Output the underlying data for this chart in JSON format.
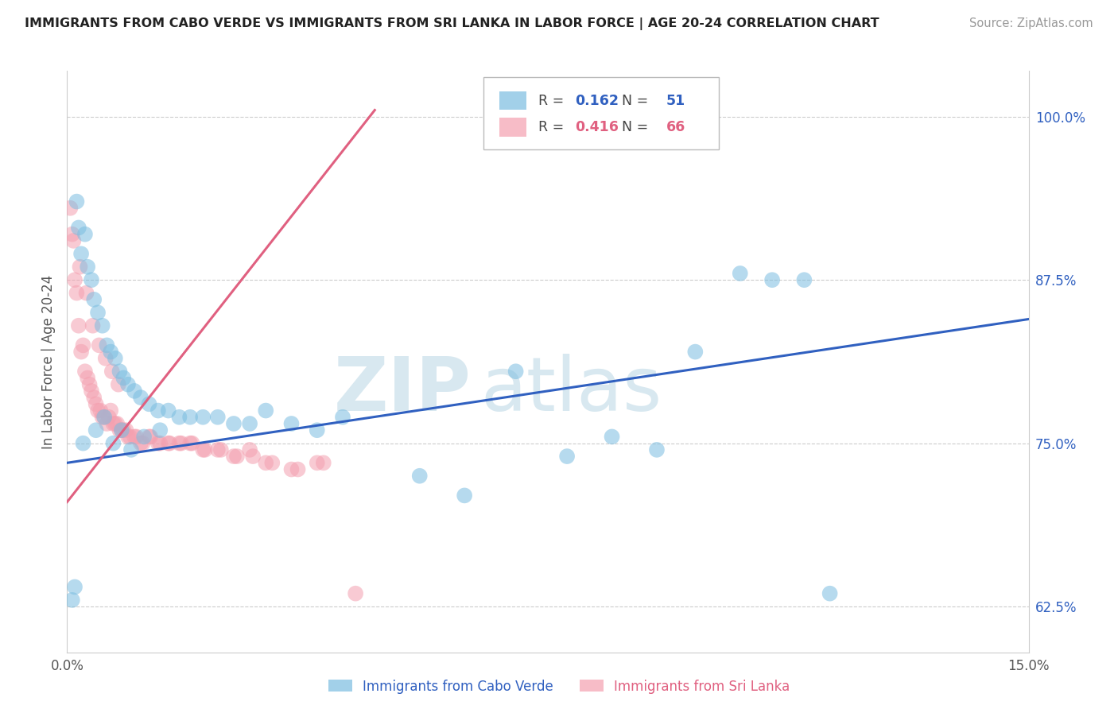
{
  "title": "IMMIGRANTS FROM CABO VERDE VS IMMIGRANTS FROM SRI LANKA IN LABOR FORCE | AGE 20-24 CORRELATION CHART",
  "source": "Source: ZipAtlas.com",
  "ylabel": "In Labor Force | Age 20-24",
  "xlim": [
    0.0,
    15.0
  ],
  "ylim": [
    59.0,
    103.5
  ],
  "yticks": [
    62.5,
    75.0,
    87.5,
    100.0
  ],
  "ytick_labels": [
    "62.5%",
    "75.0%",
    "87.5%",
    "100.0%"
  ],
  "cabo_verde_color": "#7bbde0",
  "sri_lanka_color": "#f4a0b0",
  "cabo_verde_R": 0.162,
  "cabo_verde_N": 51,
  "sri_lanka_R": 0.416,
  "sri_lanka_N": 66,
  "cabo_verde_trend_color": "#3060c0",
  "sri_lanka_trend_color": "#e06080",
  "legend_cabo_verde": "Immigrants from Cabo Verde",
  "legend_sri_lanka": "Immigrants from Sri Lanka",
  "cabo_verde_x": [
    0.15,
    0.18,
    0.22,
    0.28,
    0.32,
    0.38,
    0.42,
    0.48,
    0.55,
    0.62,
    0.68,
    0.75,
    0.82,
    0.88,
    0.95,
    1.05,
    1.15,
    1.28,
    1.42,
    1.58,
    1.75,
    1.92,
    2.12,
    2.35,
    2.6,
    2.85,
    3.1,
    3.5,
    3.9,
    4.3,
    5.5,
    6.2,
    7.0,
    7.8,
    8.5,
    9.2,
    9.8,
    10.5,
    11.0,
    11.5,
    11.9,
    0.08,
    0.12,
    0.25,
    0.45,
    0.58,
    0.72,
    0.85,
    1.0,
    1.2,
    1.45
  ],
  "cabo_verde_y": [
    93.5,
    91.5,
    89.5,
    91.0,
    88.5,
    87.5,
    86.0,
    85.0,
    84.0,
    82.5,
    82.0,
    81.5,
    80.5,
    80.0,
    79.5,
    79.0,
    78.5,
    78.0,
    77.5,
    77.5,
    77.0,
    77.0,
    77.0,
    77.0,
    76.5,
    76.5,
    77.5,
    76.5,
    76.0,
    77.0,
    72.5,
    71.0,
    80.5,
    74.0,
    75.5,
    74.5,
    82.0,
    88.0,
    87.5,
    87.5,
    63.5,
    63.0,
    64.0,
    75.0,
    76.0,
    77.0,
    75.0,
    76.0,
    74.5,
    75.5,
    76.0
  ],
  "sri_lanka_x": [
    0.08,
    0.12,
    0.18,
    0.22,
    0.28,
    0.32,
    0.38,
    0.42,
    0.48,
    0.55,
    0.62,
    0.68,
    0.75,
    0.82,
    0.88,
    0.95,
    1.05,
    1.15,
    1.28,
    1.42,
    1.58,
    1.75,
    1.92,
    2.12,
    2.35,
    2.6,
    2.85,
    3.1,
    3.5,
    3.9,
    0.15,
    0.25,
    0.35,
    0.45,
    0.52,
    0.58,
    0.65,
    0.72,
    0.78,
    0.85,
    0.92,
    0.98,
    1.08,
    1.18,
    1.3,
    1.45,
    1.6,
    1.78,
    1.95,
    2.15,
    2.4,
    2.65,
    2.9,
    3.2,
    3.6,
    4.0,
    4.5,
    0.05,
    0.1,
    0.2,
    0.3,
    0.4,
    0.5,
    0.6,
    0.7,
    0.8
  ],
  "sri_lanka_y": [
    91.0,
    87.5,
    84.0,
    82.0,
    80.5,
    80.0,
    79.0,
    78.5,
    77.5,
    77.0,
    76.5,
    77.5,
    76.5,
    76.0,
    76.0,
    75.5,
    75.5,
    75.0,
    75.5,
    75.0,
    75.0,
    75.0,
    75.0,
    74.5,
    74.5,
    74.0,
    74.5,
    73.5,
    73.0,
    73.5,
    86.5,
    82.5,
    79.5,
    78.0,
    77.5,
    77.0,
    77.0,
    76.5,
    76.5,
    76.0,
    76.0,
    75.5,
    75.5,
    75.0,
    75.5,
    75.0,
    75.0,
    75.0,
    75.0,
    74.5,
    74.5,
    74.0,
    74.0,
    73.5,
    73.0,
    73.5,
    63.5,
    93.0,
    90.5,
    88.5,
    86.5,
    84.0,
    82.5,
    81.5,
    80.5,
    79.5
  ]
}
